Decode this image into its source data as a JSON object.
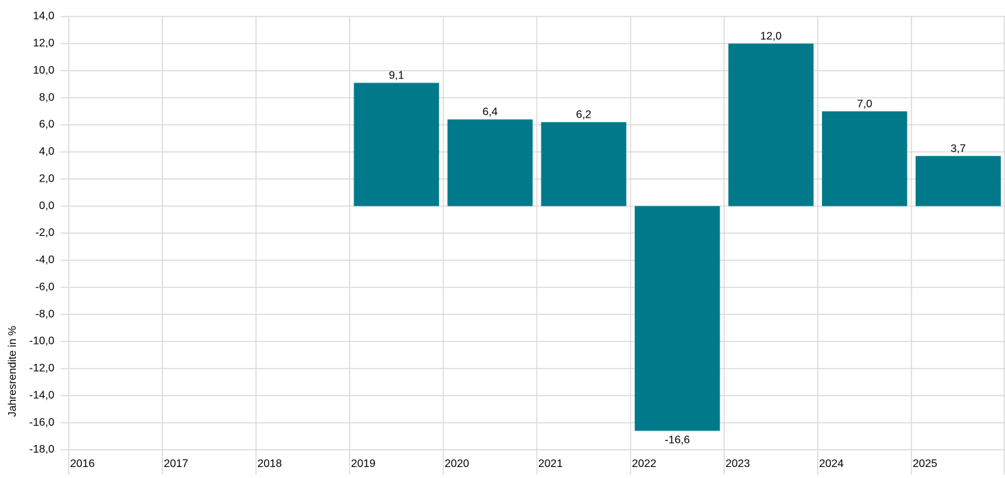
{
  "chart_data": {
    "type": "bar",
    "ylabel": "Jahresrendite in %",
    "xlabel": "",
    "title": "",
    "ylim": [
      -18,
      14
    ],
    "ytick_step": 2,
    "grid": true,
    "bar_color": "#007A8A",
    "categories": [
      "2016",
      "2017",
      "2018",
      "2019",
      "2020",
      "2021",
      "2022",
      "2023",
      "2024",
      "2025"
    ],
    "values": [
      null,
      null,
      null,
      9.1,
      6.4,
      6.2,
      -16.6,
      12.0,
      7.0,
      3.7
    ],
    "value_labels": [
      "",
      "",
      "",
      "9,1",
      "6,4",
      "6,2",
      "-16,6",
      "12,0",
      "7,0",
      "3,7"
    ],
    "ytick_labels": [
      "14,0",
      "12,0",
      "10,0",
      "8,0",
      "6,0",
      "4,0",
      "2,0",
      "0,0",
      "-2,0",
      "-4,0",
      "-6,0",
      "-8,0",
      "-10,0",
      "-12,0",
      "-14,0",
      "-16,0",
      "-18,0"
    ]
  }
}
